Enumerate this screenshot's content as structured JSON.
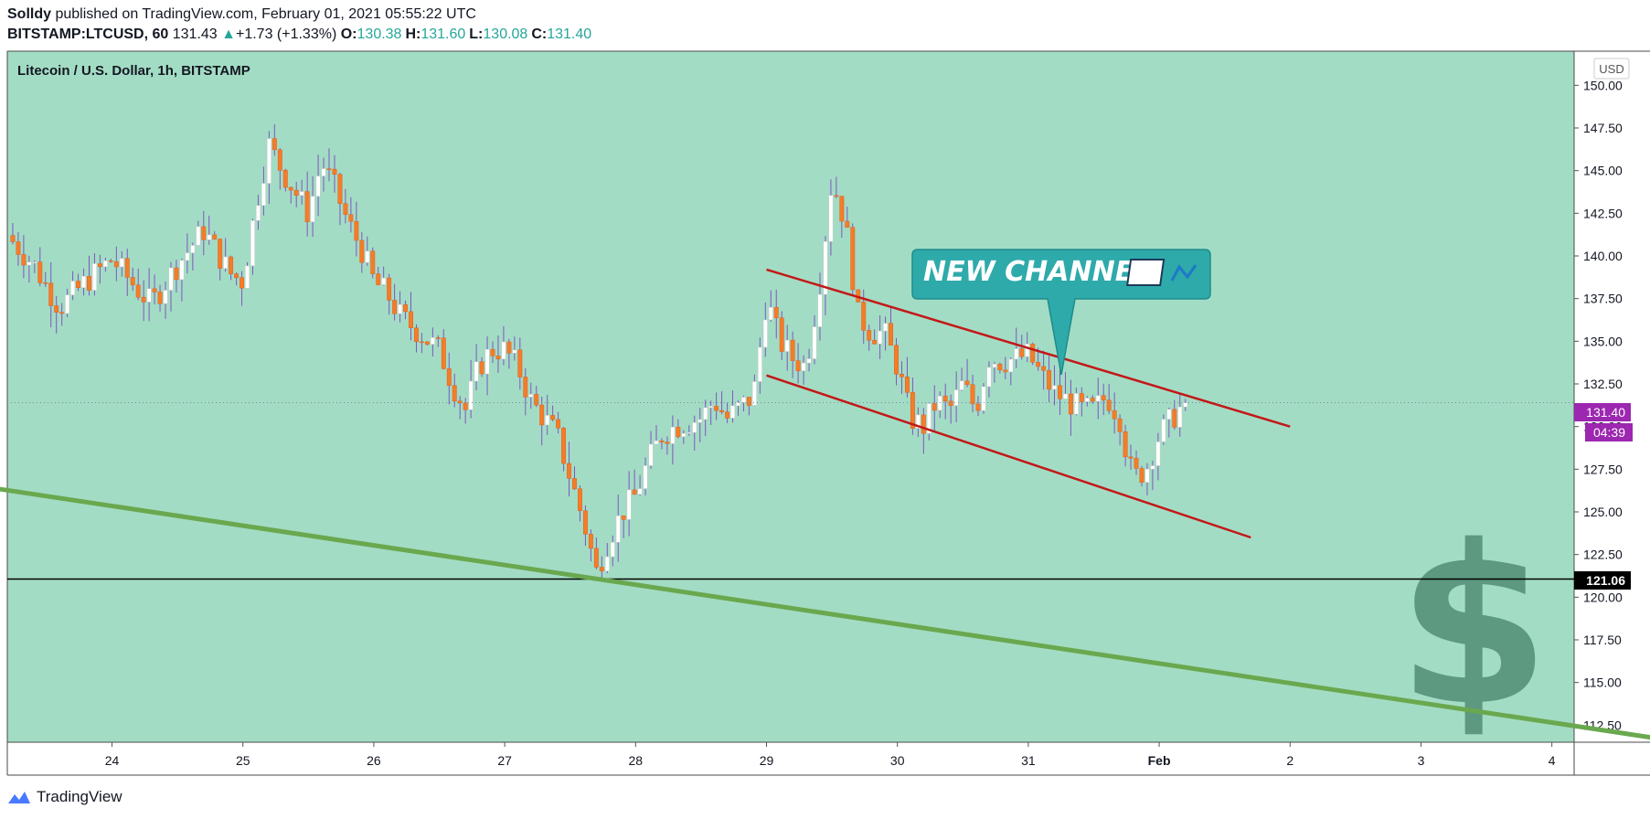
{
  "header": {
    "author": "Solldy",
    "published": "published on TradingView.com, February 01, 2021 05:55:22 UTC",
    "symbol": "BITSTAMP:LTCUSD, 60",
    "last": "131.43",
    "change_arrow": "▲",
    "change": "+1.73 (+1.33%)",
    "open_label": "O:",
    "open": "130.38",
    "high_label": "H:",
    "high": "131.60",
    "low_label": "L:",
    "low": "130.08",
    "close_label": "C:",
    "close": "131.40"
  },
  "footer": {
    "brand": "TradingView",
    "logo_icon": "tradingview-logo-icon"
  },
  "colors": {
    "background": "#a3dcc4",
    "bull_body": "#ffffff",
    "bear_body": "#f57c2a",
    "wick": "#7e57c2",
    "channel": "#c21818",
    "trendline": "#6aa84f",
    "support": "#000000",
    "callout": "#2eaaaa",
    "price_badge": "#9c27b0",
    "dollar": "#2f6b55"
  },
  "chart_data": {
    "type": "candlestick",
    "title": "Litecoin / U.S. Dollar, 1h, BITSTAMP",
    "currency_label": "USD",
    "ylim": [
      111.5,
      152
    ],
    "y_ticks": [
      "112.50",
      "115.00",
      "117.50",
      "120.00",
      "122.50",
      "125.00",
      "127.50",
      "130.00",
      "132.50",
      "135.00",
      "137.50",
      "140.00",
      "142.50",
      "145.00",
      "147.50",
      "150.00"
    ],
    "x_ticks": [
      {
        "label": "24",
        "day": 24
      },
      {
        "label": "25",
        "day": 25
      },
      {
        "label": "26",
        "day": 26
      },
      {
        "label": "27",
        "day": 27
      },
      {
        "label": "28",
        "day": 28
      },
      {
        "label": "29",
        "day": 29
      },
      {
        "label": "30",
        "day": 30
      },
      {
        "label": "31",
        "day": 31
      },
      {
        "label": "Feb",
        "day": 32
      },
      {
        "label": "2",
        "day": 33
      },
      {
        "label": "3",
        "day": 34
      },
      {
        "label": "4",
        "day": 35
      }
    ],
    "close_path": [
      [
        23.2,
        141.2
      ],
      [
        23.4,
        139.5
      ],
      [
        23.5,
        138.2
      ],
      [
        23.6,
        137.0
      ],
      [
        23.8,
        138.5
      ],
      [
        24.0,
        139.8
      ],
      [
        24.2,
        138.0
      ],
      [
        24.3,
        137.2
      ],
      [
        24.5,
        139.5
      ],
      [
        24.7,
        141.5
      ],
      [
        24.9,
        139.0
      ],
      [
        25.0,
        138.5
      ],
      [
        25.1,
        143.0
      ],
      [
        25.2,
        146.5
      ],
      [
        25.3,
        145.0
      ],
      [
        25.5,
        142.5
      ],
      [
        25.6,
        145.5
      ],
      [
        25.7,
        144.0
      ],
      [
        25.8,
        142.0
      ],
      [
        25.9,
        140.5
      ],
      [
        26.0,
        138.5
      ],
      [
        26.1,
        137.8
      ],
      [
        26.2,
        136.5
      ],
      [
        26.3,
        135.8
      ],
      [
        26.5,
        134.5
      ],
      [
        26.6,
        132.5
      ],
      [
        26.7,
        131.0
      ],
      [
        26.8,
        133.5
      ],
      [
        26.9,
        134.5
      ],
      [
        27.0,
        134.5
      ],
      [
        27.1,
        133.5
      ],
      [
        27.2,
        131.5
      ],
      [
        27.3,
        130.5
      ],
      [
        27.4,
        129.5
      ],
      [
        27.5,
        127.0
      ],
      [
        27.6,
        124.5
      ],
      [
        27.7,
        121.5
      ],
      [
        27.8,
        123.5
      ],
      [
        27.9,
        125.0
      ],
      [
        28.0,
        126.0
      ],
      [
        28.1,
        128.0
      ],
      [
        28.2,
        129.5
      ],
      [
        28.3,
        130.0
      ],
      [
        28.5,
        130.5
      ],
      [
        28.6,
        131.5
      ],
      [
        28.7,
        130.5
      ],
      [
        28.9,
        131.8
      ],
      [
        29.0,
        137.5
      ],
      [
        29.1,
        135.0
      ],
      [
        29.2,
        134.0
      ],
      [
        29.3,
        133.5
      ],
      [
        29.4,
        138.0
      ],
      [
        29.5,
        144.5
      ],
      [
        29.6,
        142.0
      ],
      [
        29.7,
        136.5
      ],
      [
        29.8,
        135.5
      ],
      [
        29.9,
        135.5
      ],
      [
        30.0,
        133.5
      ],
      [
        30.1,
        130.5
      ],
      [
        30.2,
        130.0
      ],
      [
        30.3,
        131.5
      ],
      [
        30.4,
        131.0
      ],
      [
        30.5,
        132.5
      ],
      [
        30.6,
        131.0
      ],
      [
        30.7,
        134.0
      ],
      [
        30.8,
        133.8
      ],
      [
        30.9,
        134.0
      ],
      [
        31.0,
        134.2
      ],
      [
        31.1,
        133.0
      ],
      [
        31.2,
        132.0
      ],
      [
        31.3,
        131.5
      ],
      [
        31.4,
        131.0
      ],
      [
        31.5,
        131.0
      ],
      [
        31.6,
        131.8
      ],
      [
        31.7,
        130.5
      ],
      [
        31.75,
        128.5
      ],
      [
        31.8,
        127.0
      ],
      [
        31.9,
        127.5
      ],
      [
        32.0,
        129.5
      ],
      [
        32.1,
        130.5
      ],
      [
        32.2,
        131.4
      ]
    ],
    "last_price": "131.40",
    "countdown": "04:39",
    "support_level": "121.06",
    "channel_upper": [
      [
        29.0,
        139.2
      ],
      [
        33.0,
        130.0
      ]
    ],
    "channel_lower": [
      [
        29.0,
        133.0
      ],
      [
        32.7,
        123.5
      ]
    ],
    "trendline": [
      [
        23.0,
        126.5
      ],
      [
        36.0,
        111.5
      ]
    ],
    "annotation": "NEW CHANNEL"
  }
}
